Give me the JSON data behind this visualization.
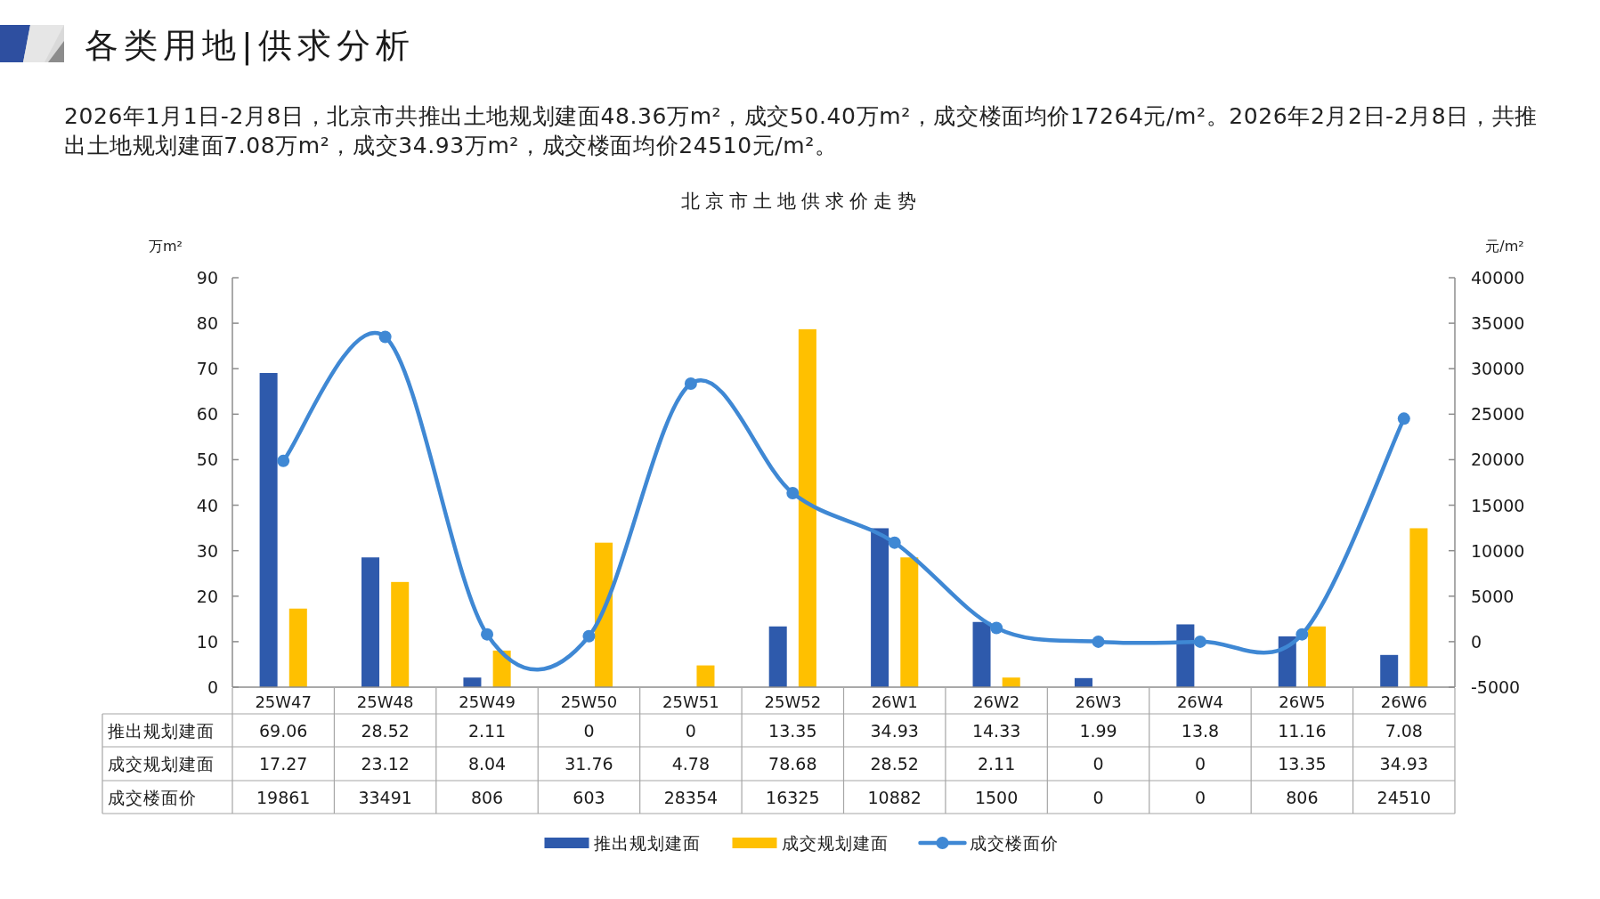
{
  "chart_data": {
    "type": "bar",
    "title": "北京市土地供求价走势",
    "ylabel": "万m²",
    "y2label": "元/m²",
    "annotations": [
      "各类用地|供求分析",
      "2026年1月1日-2月8日，北京市共推出土地规划建面48.36万m²，成交50.40万m²，成交楼面均价17264元/m²。2026年2月2日-2月8日，共推出土地规划建面7.08万m²，成交34.93万m²，成交楼面均价24510元/m²。"
    ],
    "categories": [
      "25W47",
      "25W48",
      "25W49",
      "25W50",
      "25W51",
      "25W52",
      "26W1",
      "26W2",
      "26W3",
      "26W4",
      "26W5",
      "26W6"
    ],
    "series": [
      {
        "name": "推出规划建面",
        "color": "#2e5aac",
        "values": [
          69.06,
          28.52,
          2.11,
          0,
          0,
          13.35,
          34.93,
          14.33,
          1.99,
          13.8,
          11.16,
          7.08
        ]
      },
      {
        "name": "成交规划建面",
        "color": "#ffc000",
        "values": [
          17.27,
          23.12,
          8.04,
          31.76,
          4.78,
          78.68,
          28.52,
          2.11,
          0,
          0,
          13.35,
          34.93
        ]
      },
      {
        "name": "成交楼面价",
        "type": "line",
        "axis": "y2",
        "color": "#3f88d4",
        "values": [
          19861,
          33491,
          806,
          603,
          28354,
          16325,
          10882,
          1500,
          0,
          0,
          806,
          24510
        ]
      }
    ],
    "ylim": [
      0,
      90
    ],
    "yticks": [
      0,
      10,
      20,
      30,
      40,
      50,
      60,
      70,
      80,
      90
    ],
    "y2lim": [
      -5000,
      40000
    ],
    "y2ticks": [
      -5000,
      0,
      5000,
      10000,
      15000,
      20000,
      25000,
      30000,
      35000,
      40000
    ],
    "marker": "circle",
    "legend": "bottom",
    "data_labels": true
  }
}
